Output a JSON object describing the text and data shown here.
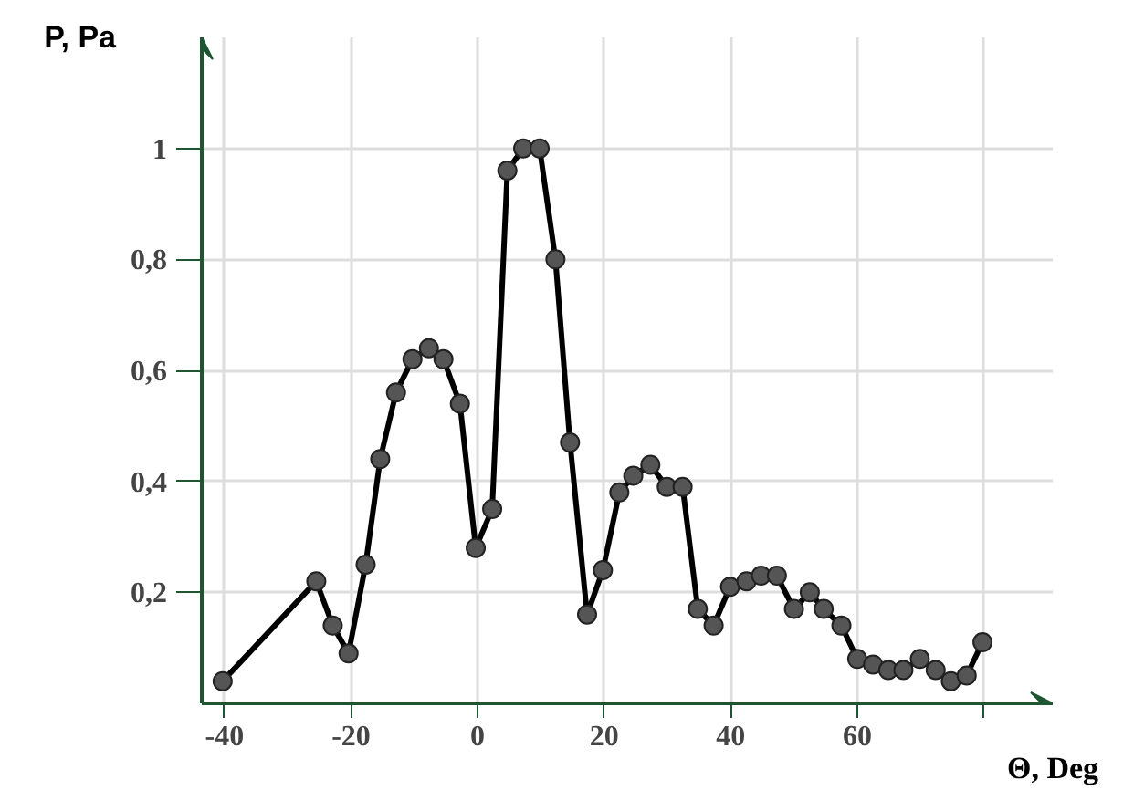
{
  "chart_data": {
    "type": "line",
    "xlabel": "Θ, Deg",
    "ylabel": "P, Pa",
    "x": [
      -40.3,
      -25.5,
      -22.9,
      -20.4,
      -17.7,
      -15.4,
      -12.9,
      -10.3,
      -7.7,
      -5.4,
      -2.8,
      -0.3,
      2.3,
      4.7,
      7.2,
      9.8,
      12.3,
      14.6,
      17.3,
      19.8,
      22.4,
      24.6,
      27.3,
      29.9,
      32.4,
      34.8,
      37.3,
      39.9,
      42.5,
      44.8,
      47.3,
      50.0,
      52.5,
      54.7,
      57.5,
      60.0,
      62.5,
      64.9,
      67.3,
      69.9,
      72.4,
      74.8,
      77.3,
      79.8
    ],
    "series": [
      {
        "color": "#000000",
        "values": [
          0.04,
          0.22,
          0.14,
          0.09,
          0.25,
          0.44,
          0.56,
          0.62,
          0.64,
          0.62,
          0.54,
          0.28,
          0.35,
          0.96,
          1.0,
          1.0,
          0.8,
          0.47,
          0.16,
          0.24,
          0.38,
          0.41,
          0.43,
          0.39,
          0.39,
          0.17,
          0.14,
          0.21,
          0.22,
          0.23,
          0.23,
          0.17,
          0.2,
          0.17,
          0.14,
          0.08,
          0.07,
          0.06,
          0.06,
          0.08,
          0.06,
          0.04,
          0.05,
          0.11
        ]
      }
    ],
    "marker": "circle",
    "line_style": "solid",
    "grid": true,
    "xlim": [
      -43.6,
      90.9
    ],
    "ylim": [
      0,
      1.2
    ],
    "xticks": [
      -40,
      -20,
      0,
      20,
      40,
      60,
      {
        "value": 80,
        "label": null
      }
    ],
    "yticks": [
      {
        "value": 0.2,
        "label": "0,2"
      },
      {
        "value": 0.4,
        "label": "0,4"
      },
      {
        "value": 0.6,
        "label": "0,6"
      },
      {
        "value": 0.8,
        "label": "0,8"
      },
      1
    ]
  }
}
